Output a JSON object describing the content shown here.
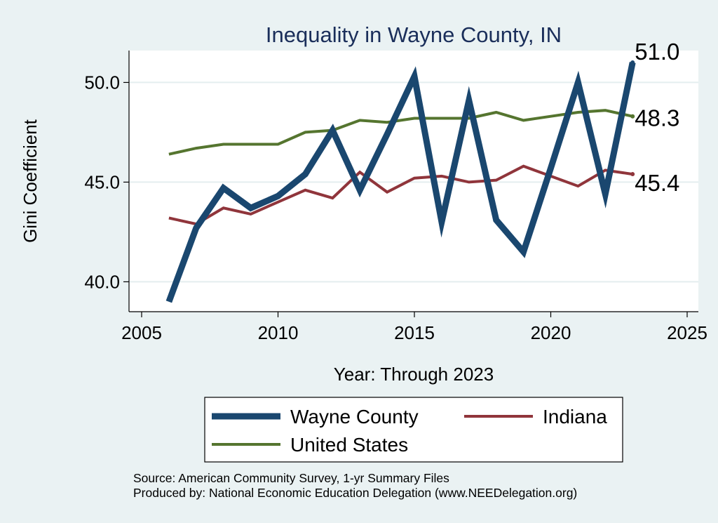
{
  "chart_data": {
    "type": "line",
    "title": "Inequality in Wayne County, IN",
    "xlabel": "Year: Through 2023",
    "ylabel": "Gini Coefficient",
    "xlim": [
      2005,
      2025
    ],
    "ylim": [
      38.5,
      51.6
    ],
    "x_ticks": [
      2005,
      2010,
      2015,
      2020,
      2025
    ],
    "x_tick_labels": [
      "2005",
      "2010",
      "2015",
      "2020",
      "2025"
    ],
    "y_ticks": [
      40,
      45,
      50
    ],
    "y_tick_labels": [
      "40.0",
      "45.0",
      "50.0"
    ],
    "grid": true,
    "x": [
      2006,
      2007,
      2008,
      2009,
      2010,
      2011,
      2012,
      2013,
      2014,
      2015,
      2016,
      2017,
      2018,
      2019,
      2020,
      2021,
      2022,
      2023
    ],
    "series": [
      {
        "name": "Wayne County",
        "color": "#1a476f",
        "values": [
          39.0,
          42.7,
          44.7,
          43.7,
          44.3,
          45.4,
          47.6,
          44.6,
          47.4,
          50.3,
          43.0,
          49.1,
          43.1,
          41.5,
          45.7,
          50.0,
          44.4,
          51.0
        ],
        "end_label": "51.0"
      },
      {
        "name": "Indiana",
        "color": "#90353b",
        "values": [
          43.2,
          42.9,
          43.7,
          43.4,
          44.0,
          44.6,
          44.2,
          45.5,
          44.5,
          45.2,
          45.3,
          45.0,
          45.1,
          45.8,
          45.3,
          44.8,
          45.6,
          45.4
        ],
        "end_label": "45.4"
      },
      {
        "name": "United States",
        "color": "#55752f",
        "values": [
          46.4,
          46.7,
          46.9,
          46.9,
          46.9,
          47.5,
          47.6,
          48.1,
          48.0,
          48.2,
          48.2,
          48.2,
          48.5,
          48.1,
          48.3,
          48.5,
          48.6,
          48.3
        ],
        "end_label": "48.3"
      }
    ],
    "legend": {
      "placement": "bottom",
      "entries": [
        "Wayne County",
        "Indiana",
        "United States"
      ]
    },
    "source_lines": [
      "Source: American Community Survey, 1-yr Summary Files",
      "Produced by: National Economic Education Delegation (www.NEEDelegation.org)"
    ]
  }
}
